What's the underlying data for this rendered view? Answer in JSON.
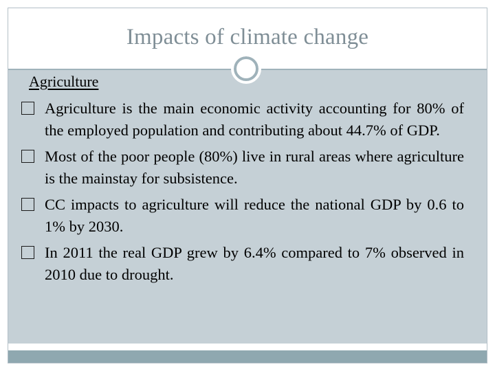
{
  "slide": {
    "title": "Impacts of climate change",
    "heading": "Agriculture",
    "bullets": [
      "Agriculture is the main economic activity accounting for 80% of the employed population and contributing about 44.7% of GDP.",
      "Most of the poor people (80%) live in rural areas where agriculture is the mainstay for subsistence.",
      "CC impacts to agriculture will reduce the national GDP by 0.6 to 1% by 2030.",
      "In 2011 the real GDP grew by 6.4% compared to 7% observed in 2010  due to drought."
    ]
  },
  "colors": {
    "title_text": "#7f8e96",
    "content_background": "#c5d0d6",
    "accent": "#9fb2ba",
    "footer_bar": "#8fa8b0"
  },
  "icons": {
    "bullet": "square-bullet-icon",
    "divider": "ring-divider-icon"
  }
}
